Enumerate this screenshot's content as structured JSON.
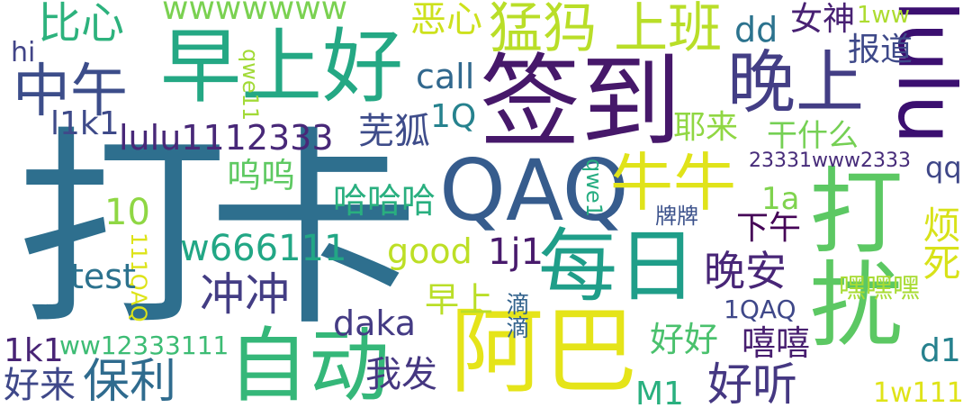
{
  "words": [
    {
      "text": "打卡",
      "color": "#2e6f8e"
    },
    {
      "text": "签到",
      "color": "#46186a"
    },
    {
      "text": "早上好",
      "color": "#24a884"
    },
    {
      "text": "中午",
      "color": "#3c4d8a"
    },
    {
      "text": "晚上",
      "color": "#433e85"
    },
    {
      "text": "lulu",
      "color": "#3b0f70"
    },
    {
      "text": "QAQ",
      "color": "#365c8d"
    },
    {
      "text": "猛犸 上班",
      "color": "#b9de28"
    },
    {
      "text": "牛牛",
      "color": "#e0e31a"
    },
    {
      "text": "每日",
      "color": "#1f9e89"
    },
    {
      "text": "自动",
      "color": "#35b779"
    },
    {
      "text": "阿巴",
      "color": "#e5e419"
    },
    {
      "text": "打扰",
      "color": "#5cc863"
    },
    {
      "text": "比心",
      "color": "#2db27d"
    },
    {
      "text": "wwwwwww",
      "color": "#7ad151"
    },
    {
      "text": "恶心",
      "color": "#cde11d"
    },
    {
      "text": "dd",
      "color": "#2c738e"
    },
    {
      "text": "女神",
      "color": "#482173"
    },
    {
      "text": "1ww",
      "color": "#addc30"
    },
    {
      "text": "hi",
      "color": "#414487"
    },
    {
      "text": "qwe11",
      "color": "#a2da37"
    },
    {
      "text": "call",
      "color": "#31688e"
    },
    {
      "text": "报道",
      "color": "#3e4989"
    },
    {
      "text": "l1k1",
      "color": "#3e4a89"
    },
    {
      "text": "lulu1112333",
      "color": "#482878"
    },
    {
      "text": "1Q",
      "color": "#26828e"
    },
    {
      "text": "芜狐",
      "color": "#3e4c8a"
    },
    {
      "text": "耶来",
      "color": "#90d743"
    },
    {
      "text": "干什么",
      "color": "#75d054"
    },
    {
      "text": "23331www2333",
      "color": "#472c7a"
    },
    {
      "text": "qq",
      "color": "#3f4788"
    },
    {
      "text": "呜呜",
      "color": "#5ec962"
    },
    {
      "text": "哈哈哈",
      "color": "#29af7f"
    },
    {
      "text": "10",
      "color": "#8fd744"
    },
    {
      "text": "1a",
      "color": "#7fd34e"
    },
    {
      "text": "qwe1",
      "color": "#27ad81"
    },
    {
      "text": "牌牌",
      "color": "#3b518b"
    },
    {
      "text": "下午",
      "color": "#450457"
    },
    {
      "text": "烦死",
      "color": "#d8e219"
    },
    {
      "text": "111QAQ",
      "color": "#dde318"
    },
    {
      "text": "w666111",
      "color": "#22a785"
    },
    {
      "text": "good",
      "color": "#bddf26"
    },
    {
      "text": "1j1",
      "color": "#481a6c"
    },
    {
      "text": "晚安",
      "color": "#482677"
    },
    {
      "text": "test",
      "color": "#2c728e"
    },
    {
      "text": "冲冲",
      "color": "#433d84"
    },
    {
      "text": "早上",
      "color": "#bade28"
    },
    {
      "text": "滴滴",
      "color": "#33638d"
    },
    {
      "text": "嘿嘿嘿",
      "color": "#a8db34"
    },
    {
      "text": "1QAQ",
      "color": "#3f4889"
    },
    {
      "text": "daka",
      "color": "#443b84"
    },
    {
      "text": "好好",
      "color": "#4ac16d"
    },
    {
      "text": "嘻嘻",
      "color": "#481f70"
    },
    {
      "text": "1k1",
      "color": "#482475"
    },
    {
      "text": "ww12333111",
      "color": "#3dbc74"
    },
    {
      "text": "好来",
      "color": "#3f4889"
    },
    {
      "text": "保利",
      "color": "#2f6b8e"
    },
    {
      "text": "我发",
      "color": "#453781"
    },
    {
      "text": "M1",
      "color": "#2ab07f"
    },
    {
      "text": "好听",
      "color": "#453882"
    },
    {
      "text": "d1",
      "color": "#26818e"
    },
    {
      "text": "1w111",
      "color": "#dfe318"
    }
  ]
}
